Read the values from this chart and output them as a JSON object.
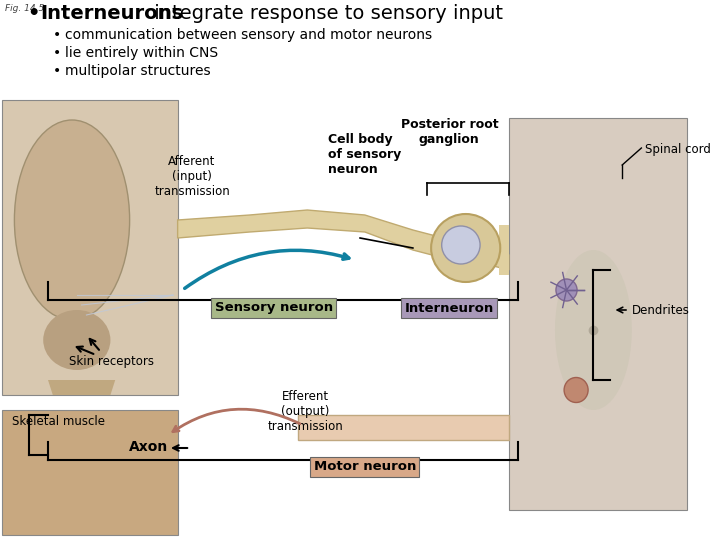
{
  "bg_color": "#ffffff",
  "fig_label": "Fig. 14.5",
  "title_bold": "Interneurons",
  "title_rest": " integrate response to sensory input",
  "bullets": [
    "communication between sensory and motor neurons",
    "lie entirely within CNS",
    "multipolar structures"
  ],
  "labels": {
    "afferent": "Afferent\n(input)\ntransmission",
    "cell_body": "Cell body\nof sensory\nneuron",
    "posterior_root": "Posterior root\nganglion",
    "spinal_cord": "Spinal cord",
    "dendrites": "Dendrites",
    "sensory_neuron": "Sensory neuron",
    "interneuron": "Interneuron",
    "skin_receptors": "Skin receptors",
    "efferent": "Efferent\n(output)\ntransmission",
    "skeletal_muscle": "Skeletal muscle",
    "axon": "Axon",
    "motor_neuron": "Motor neuron"
  },
  "sensory_box_color": "#a8b888",
  "interneuron_box_color": "#a898b8",
  "motor_box_color": "#d8a888",
  "bracket_color": "#000000",
  "arrow_sensory_color": "#1080a0",
  "arrow_motor_color": "#b07060",
  "face_bg": "#d8c8b0",
  "spine_bg": "#d8ccc0",
  "muscle_bg": "#c8a880"
}
